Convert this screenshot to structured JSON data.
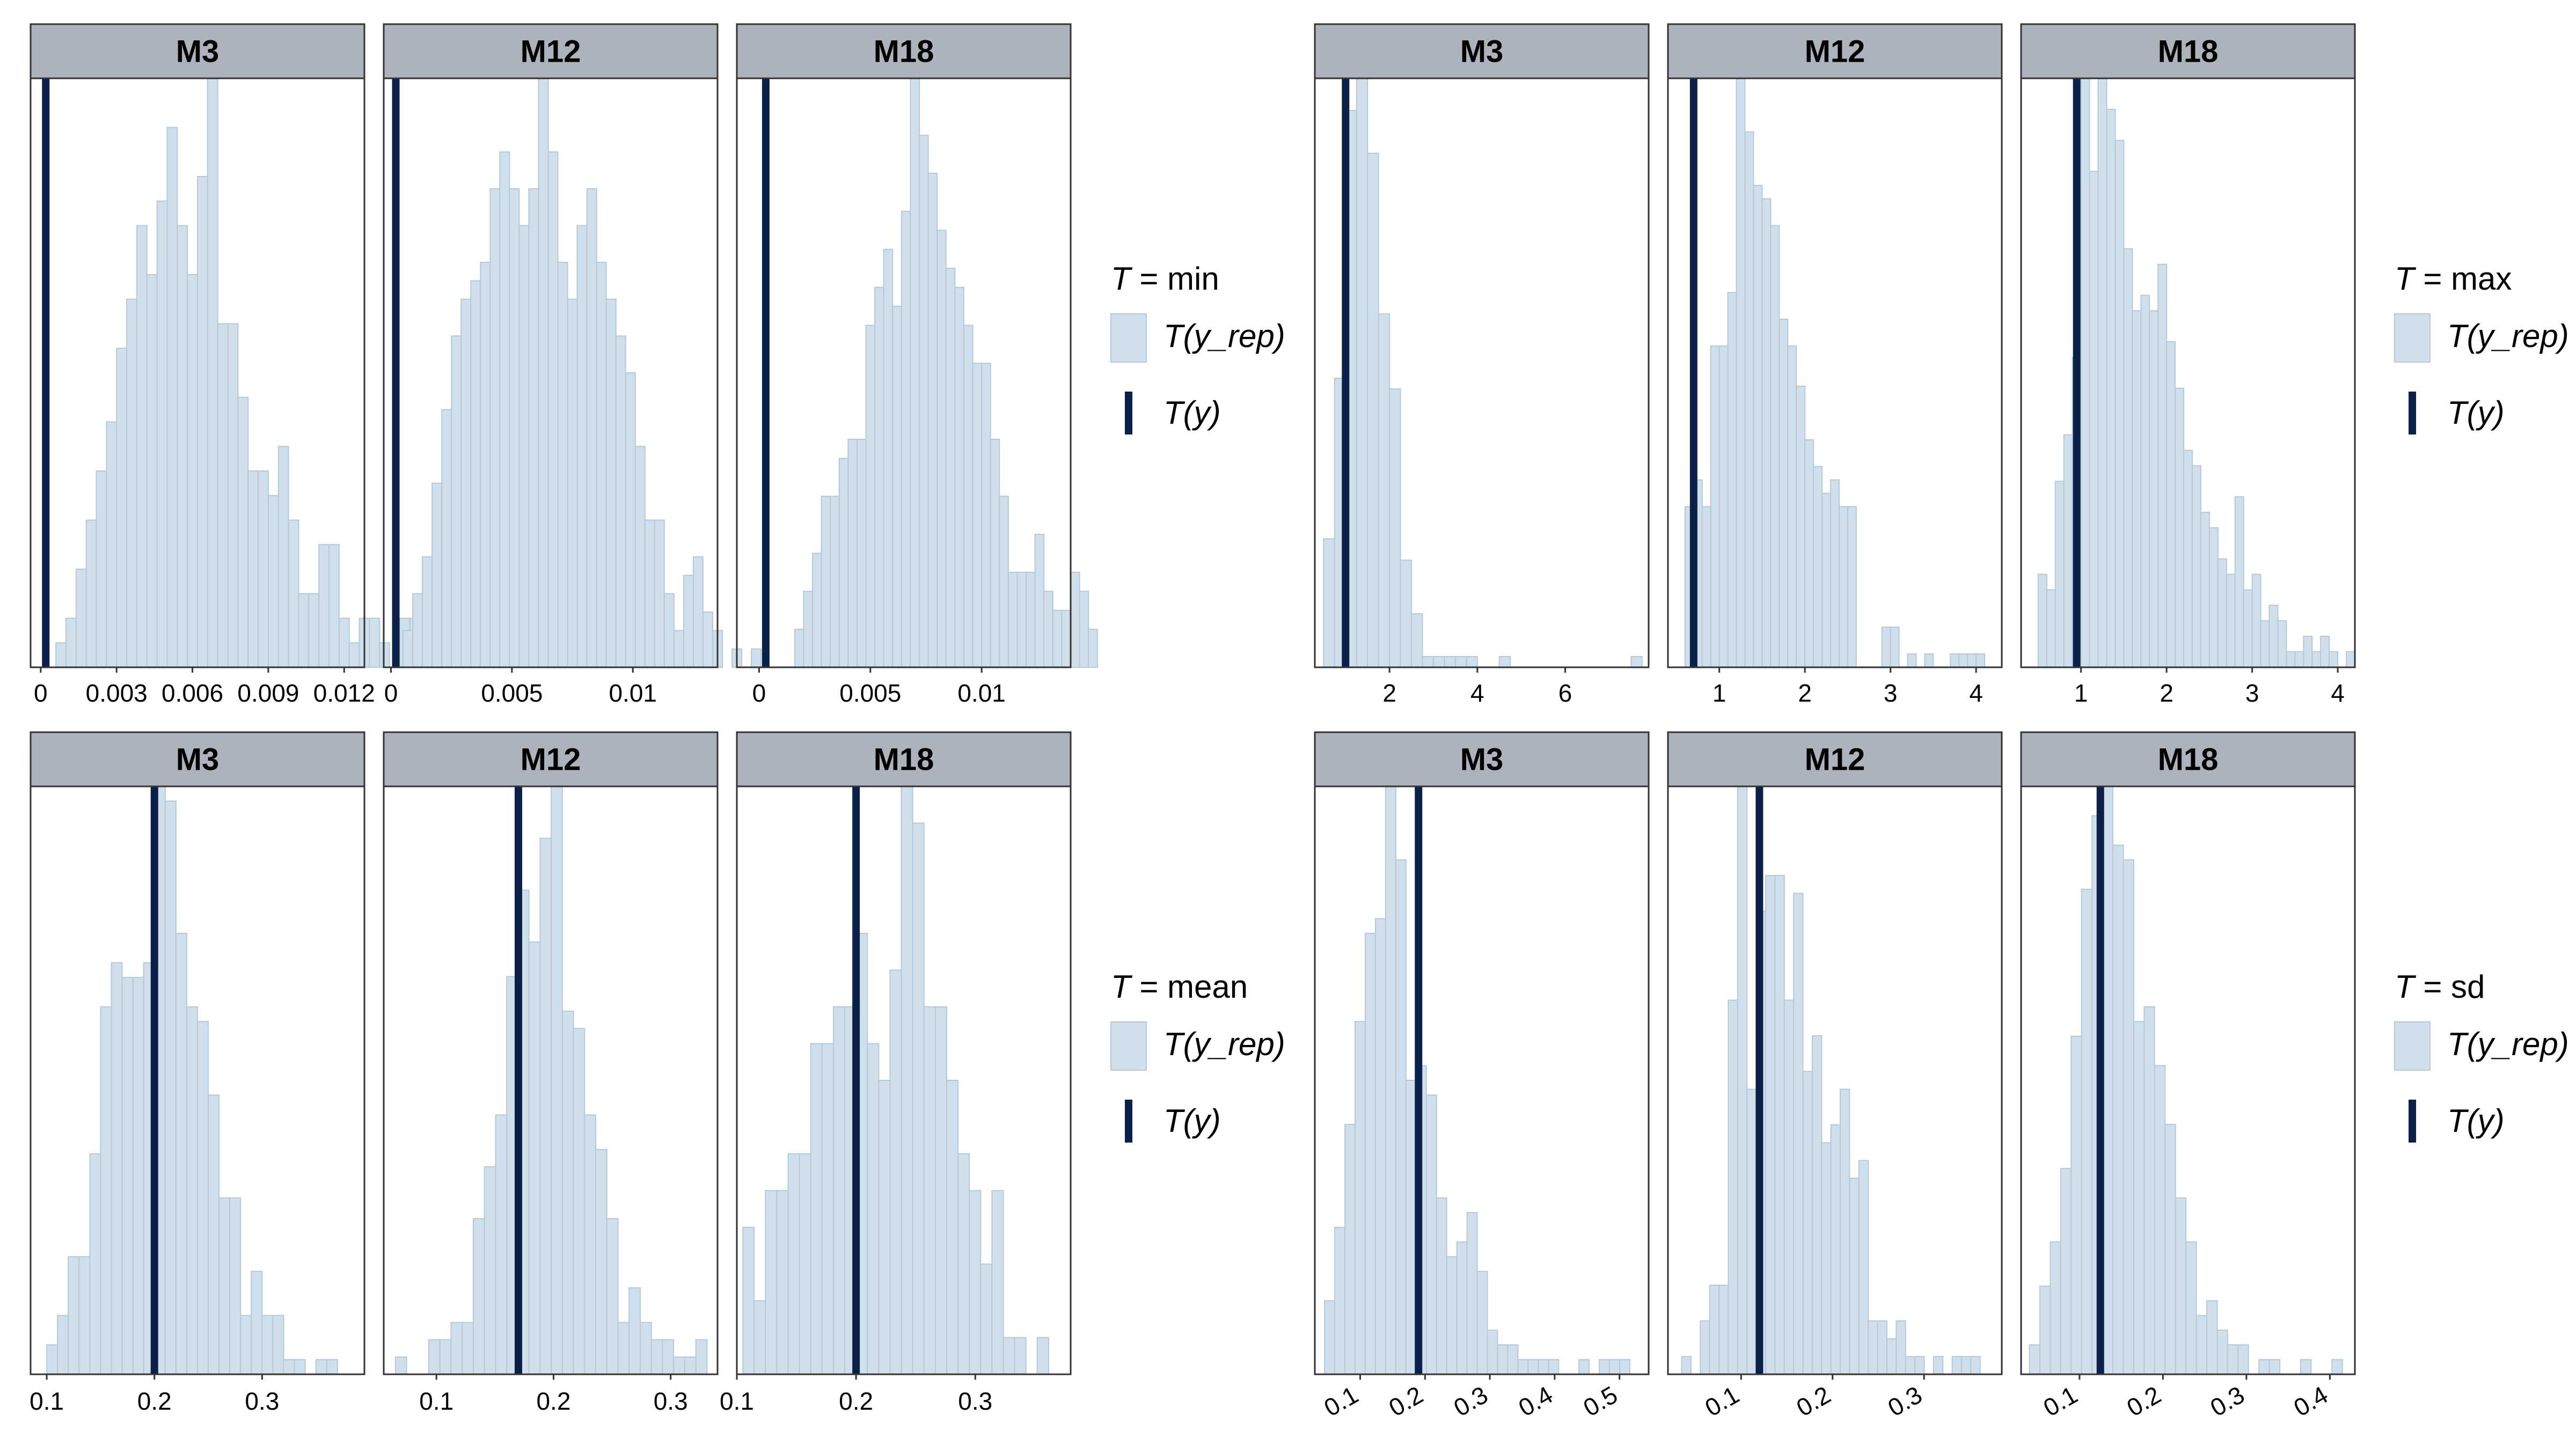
{
  "colors": {
    "bar_fill": "#cfe0ec",
    "bar_stroke": "#b4cadb",
    "observed_line": "#0b2149",
    "strip_fill": "#adb3bc",
    "panel_border": "#333333"
  },
  "legend_labels": {
    "yrep": "T(y_rep)",
    "y": "T(y)"
  },
  "chart_data": [
    {
      "type": "histogram",
      "statistic_label": "T = min",
      "legend": {
        "yrep": "T(y_rep)",
        "y": "T(y)"
      },
      "facets": [
        {
          "label": "M3",
          "xlim": [
            -0.0004,
            0.0128
          ],
          "x_ticks": [
            {
              "v": 0,
              "t": "0"
            },
            {
              "v": 0.003,
              "t": "0.003"
            },
            {
              "v": 0.006,
              "t": "0.006"
            },
            {
              "v": 0.009,
              "t": "0.009"
            },
            {
              "v": 0.012,
              "t": "0.012"
            }
          ],
          "observed": 0.0002,
          "bin_start": 0.0006,
          "bin_width": 0.0004,
          "counts": [
            1,
            2,
            4,
            6,
            8,
            10,
            13,
            15,
            18,
            16,
            19,
            22,
            18,
            16,
            20,
            24,
            14,
            14,
            11,
            8,
            8,
            7,
            9,
            6,
            3,
            3,
            5,
            5,
            2,
            1,
            2,
            2,
            1,
            0,
            2,
            2,
            1,
            0,
            1
          ]
        },
        {
          "label": "M12",
          "xlim": [
            -0.0003,
            0.0135
          ],
          "x_ticks": [
            {
              "v": 0,
              "t": "0"
            },
            {
              "v": 0.005,
              "t": "0.005"
            },
            {
              "v": 0.01,
              "t": "0.01"
            }
          ],
          "observed": 0.0002,
          "bin_start": 0.0005,
          "bin_width": 0.0004,
          "counts": [
            2,
            4,
            6,
            10,
            14,
            18,
            20,
            21,
            22,
            26,
            28,
            26,
            24,
            26,
            32,
            28,
            22,
            20,
            24,
            26,
            22,
            20,
            18,
            16,
            12,
            8,
            8,
            4,
            2,
            5,
            6,
            3,
            2,
            0,
            1,
            0,
            1
          ]
        },
        {
          "label": "M18",
          "xlim": [
            -0.001,
            0.014
          ],
          "x_ticks": [
            {
              "v": 0,
              "t": "0"
            },
            {
              "v": 0.005,
              "t": "0.005"
            },
            {
              "v": 0.01,
              "t": "0.01"
            }
          ],
          "observed": 0.0003,
          "bin_start": 0.0016,
          "bin_width": 0.0004,
          "counts": [
            2,
            4,
            6,
            9,
            9,
            11,
            12,
            12,
            18,
            20,
            22,
            19,
            24,
            31,
            28,
            26,
            23,
            21,
            20,
            18,
            16,
            16,
            12,
            9,
            5,
            5,
            5,
            7,
            4,
            3,
            3,
            5,
            4,
            2
          ]
        }
      ]
    },
    {
      "type": "histogram",
      "statistic_label": "T = max",
      "legend": {
        "yrep": "T(y_rep)",
        "y": "T(y)"
      },
      "facets": [
        {
          "label": "M3",
          "xlim": [
            0.3,
            7.9
          ],
          "x_ticks": [
            {
              "v": 2,
              "t": "2"
            },
            {
              "v": 4,
              "t": "4"
            },
            {
              "v": 6,
              "t": "6"
            }
          ],
          "observed": 1.0,
          "bin_start": 0.5,
          "bin_width": 0.25,
          "counts": [
            12,
            27,
            52,
            55,
            48,
            33,
            26,
            10,
            5,
            1,
            1,
            1,
            1,
            1,
            0,
            0,
            1,
            0,
            0,
            0,
            0,
            0,
            0,
            0,
            0,
            0,
            0,
            0,
            1
          ]
        },
        {
          "label": "M12",
          "xlim": [
            0.4,
            4.3
          ],
          "x_ticks": [
            {
              "v": 1,
              "t": "1"
            },
            {
              "v": 2,
              "t": "2"
            },
            {
              "v": 3,
              "t": "3"
            },
            {
              "v": 4,
              "t": "4"
            }
          ],
          "observed": 0.7,
          "bin_start": 0.6,
          "bin_width": 0.1,
          "counts": [
            12,
            14,
            12,
            24,
            24,
            28,
            44,
            40,
            36,
            35,
            33,
            26,
            24,
            21,
            17,
            15,
            13,
            14,
            12,
            12,
            0,
            0,
            0,
            3,
            3,
            0,
            1,
            0,
            1,
            0,
            0,
            1,
            1,
            1,
            1
          ]
        },
        {
          "label": "M18",
          "xlim": [
            0.3,
            4.2
          ],
          "x_ticks": [
            {
              "v": 1,
              "t": "1"
            },
            {
              "v": 2,
              "t": "2"
            },
            {
              "v": 3,
              "t": "3"
            },
            {
              "v": 4,
              "t": "4"
            }
          ],
          "observed": 0.95,
          "bin_start": 0.5,
          "bin_width": 0.1,
          "counts": [
            6,
            5,
            12,
            15,
            20,
            38,
            32,
            38,
            36,
            34,
            27,
            23,
            24,
            23,
            26,
            21,
            18,
            14,
            13,
            10,
            9,
            7,
            6,
            11,
            5,
            6,
            3,
            4,
            3,
            1,
            1,
            2,
            1,
            2,
            1,
            0,
            1
          ]
        }
      ]
    },
    {
      "type": "histogram",
      "statistic_label": "T = mean",
      "legend": {
        "yrep": "T(y_rep)",
        "y": "T(y)"
      },
      "facets": [
        {
          "label": "M3",
          "xlim": [
            0.085,
            0.395
          ],
          "x_ticks": [
            {
              "v": 0.1,
              "t": "0.1"
            },
            {
              "v": 0.2,
              "t": "0.2"
            },
            {
              "v": 0.3,
              "t": "0.3"
            }
          ],
          "observed": 0.2,
          "bin_start": 0.1,
          "bin_width": 0.01,
          "counts": [
            2,
            4,
            8,
            8,
            15,
            25,
            28,
            27,
            27,
            28,
            40,
            39,
            30,
            25,
            24,
            19,
            12,
            12,
            4,
            7,
            4,
            4,
            1,
            1,
            0,
            1,
            1
          ]
        },
        {
          "label": "M12",
          "xlim": [
            0.055,
            0.34
          ],
          "x_ticks": [
            {
              "v": 0.1,
              "t": "0.1"
            },
            {
              "v": 0.2,
              "t": "0.2"
            },
            {
              "v": 0.3,
              "t": "0.3"
            }
          ],
          "observed": 0.17,
          "bin_start": 0.065,
          "bin_width": 0.0095,
          "counts": [
            1,
            0,
            0,
            2,
            2,
            3,
            3,
            9,
            12,
            15,
            23,
            28,
            25,
            31,
            34,
            21,
            20,
            15,
            13,
            9,
            3,
            5,
            3,
            2,
            2,
            1,
            1,
            2
          ]
        },
        {
          "label": "M18",
          "xlim": [
            0.1,
            0.38
          ],
          "x_ticks": [
            {
              "v": 0.1,
              "t": "0.1"
            },
            {
              "v": 0.2,
              "t": "0.2"
            },
            {
              "v": 0.3,
              "t": "0.3"
            }
          ],
          "observed": 0.2,
          "bin_start": 0.105,
          "bin_width": 0.0095,
          "counts": [
            4,
            2,
            5,
            5,
            6,
            6,
            9,
            9,
            10,
            10,
            12,
            9,
            8,
            11,
            16,
            15,
            10,
            10,
            8,
            6,
            5,
            3,
            5,
            1,
            1,
            0,
            1
          ]
        }
      ]
    },
    {
      "type": "histogram",
      "statistic_label": "T = sd",
      "legend": {
        "yrep": "T(y_rep)",
        "y": "T(y)"
      },
      "facets": [
        {
          "label": "M3",
          "xlim": [
            0.03,
            0.545
          ],
          "x_ticks": [
            {
              "v": 0.1,
              "t": "0.1"
            },
            {
              "v": 0.2,
              "t": "0.2"
            },
            {
              "v": 0.3,
              "t": "0.3"
            },
            {
              "v": 0.4,
              "t": "0.4"
            },
            {
              "v": 0.5,
              "t": "0.5"
            }
          ],
          "observed": 0.19,
          "bin_start": 0.045,
          "bin_width": 0.0157,
          "counts": [
            5,
            10,
            17,
            24,
            30,
            31,
            40,
            35,
            20,
            21,
            19,
            12,
            8,
            9,
            11,
            7,
            3,
            2,
            2,
            1,
            1,
            1,
            1,
            0,
            0,
            1,
            0,
            1,
            1,
            1
          ]
        },
        {
          "label": "M12",
          "xlim": [
            0.02,
            0.385
          ],
          "x_ticks": [
            {
              "v": 0.1,
              "t": "0.1"
            },
            {
              "v": 0.2,
              "t": "0.2"
            },
            {
              "v": 0.3,
              "t": "0.3"
            }
          ],
          "observed": 0.12,
          "bin_start": 0.035,
          "bin_width": 0.0102,
          "counts": [
            1,
            0,
            3,
            5,
            5,
            21,
            33,
            16,
            26,
            28,
            28,
            21,
            27,
            17,
            19,
            13,
            14,
            16,
            11,
            12,
            3,
            3,
            2,
            3,
            1,
            1,
            0,
            1,
            0,
            1,
            1,
            1
          ]
        },
        {
          "label": "M18",
          "xlim": [
            0.03,
            0.43
          ],
          "x_ticks": [
            {
              "v": 0.1,
              "t": "0.1"
            },
            {
              "v": 0.2,
              "t": "0.2"
            },
            {
              "v": 0.3,
              "t": "0.3"
            },
            {
              "v": 0.4,
              "t": "0.4"
            }
          ],
          "observed": 0.125,
          "bin_start": 0.04,
          "bin_width": 0.0125,
          "counts": [
            2,
            6,
            9,
            14,
            23,
            33,
            38,
            40,
            36,
            35,
            24,
            25,
            21,
            17,
            12,
            9,
            4,
            5,
            3,
            2,
            2,
            0,
            1,
            1,
            0,
            0,
            1,
            0,
            0,
            1
          ]
        }
      ]
    }
  ]
}
